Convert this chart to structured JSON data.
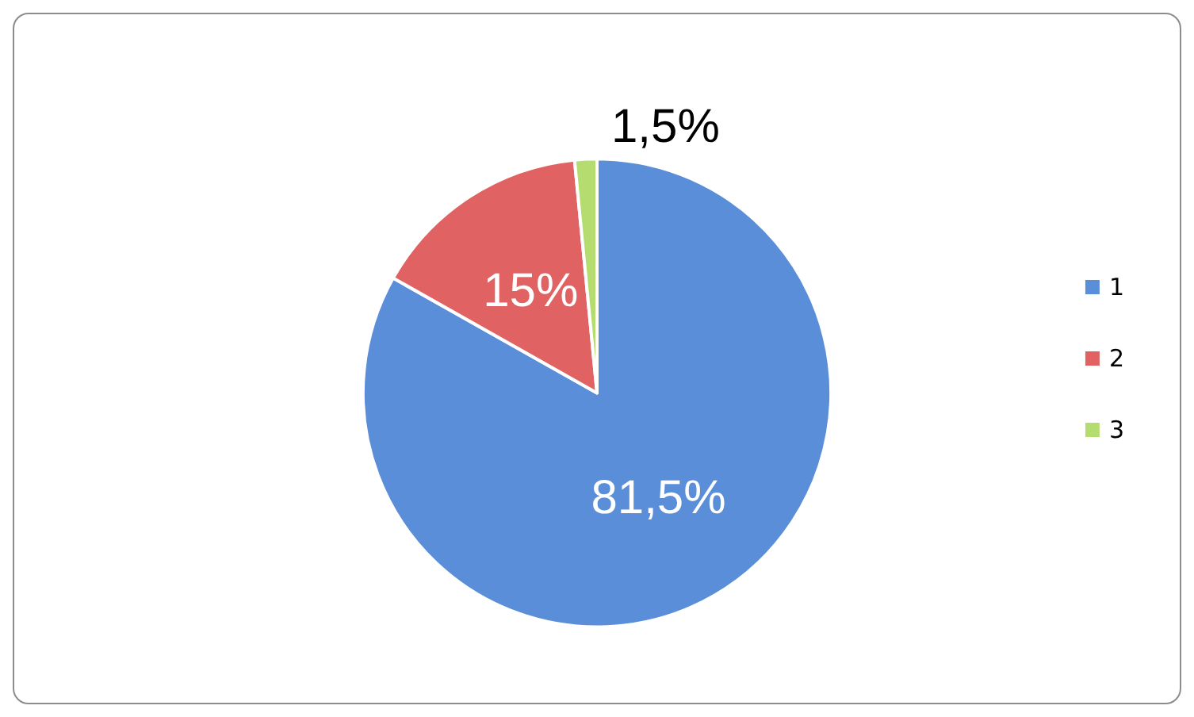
{
  "chart_data": {
    "type": "pie",
    "categories": [
      "1",
      "2",
      "3"
    ],
    "values": [
      81.5,
      15,
      1.5
    ],
    "colors": [
      "#5b8ed8",
      "#e06262",
      "#b5dc6e"
    ],
    "value_labels": [
      "81,5%",
      "15%",
      "1,5%"
    ],
    "legend": "right"
  }
}
